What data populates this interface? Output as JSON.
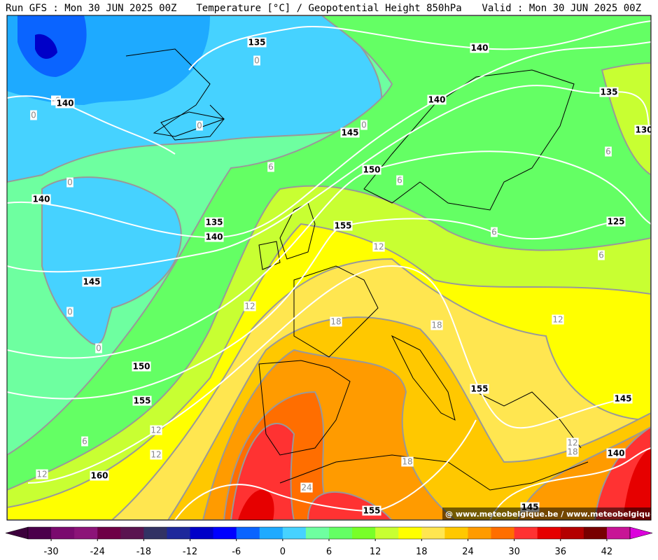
{
  "header": {
    "run": "Run GFS : Mon 30 JUN 2025 00Z",
    "title": "Temperature [°C] / Geopotential Height 850hPa",
    "valid": "Valid : Mon 30 JUN 2025 00Z"
  },
  "map": {
    "height_labels": [
      135,
      140,
      140,
      140,
      135,
      130,
      145,
      150,
      140,
      135,
      140,
      155,
      125,
      145,
      150,
      155,
      155,
      145,
      140,
      160,
      155,
      145
    ],
    "temperature_labels": [
      0,
      -6,
      0,
      0,
      0,
      6,
      0,
      6,
      6,
      12,
      6,
      6,
      0,
      0,
      12,
      18,
      18,
      12,
      12,
      6,
      12,
      12,
      18,
      12,
      18,
      24
    ],
    "watermark": "@ www.meteobelgique.be / www.meteobelgique.be"
  },
  "colorbar": {
    "lim": [
      -33,
      45
    ],
    "ticks": [
      -30,
      -24,
      -18,
      -12,
      -6,
      0,
      6,
      12,
      18,
      24,
      30,
      36,
      42
    ],
    "colors": [
      "#4b004b",
      "#7a0a6e",
      "#8c1478",
      "#6e0046",
      "#5a1450",
      "#323264",
      "#1e289b",
      "#0000c8",
      "#0000ff",
      "#0a64ff",
      "#1eaaff",
      "#46d2ff",
      "#6effa0",
      "#64ff64",
      "#78ff28",
      "#c8ff32",
      "#ffff00",
      "#ffe650",
      "#ffc800",
      "#ff9b00",
      "#ff6e00",
      "#ff3232",
      "#e60000",
      "#b40000",
      "#780000",
      "#c81496"
    ],
    "under_color": "#3c003c",
    "over_color": "#dc00dc"
  }
}
